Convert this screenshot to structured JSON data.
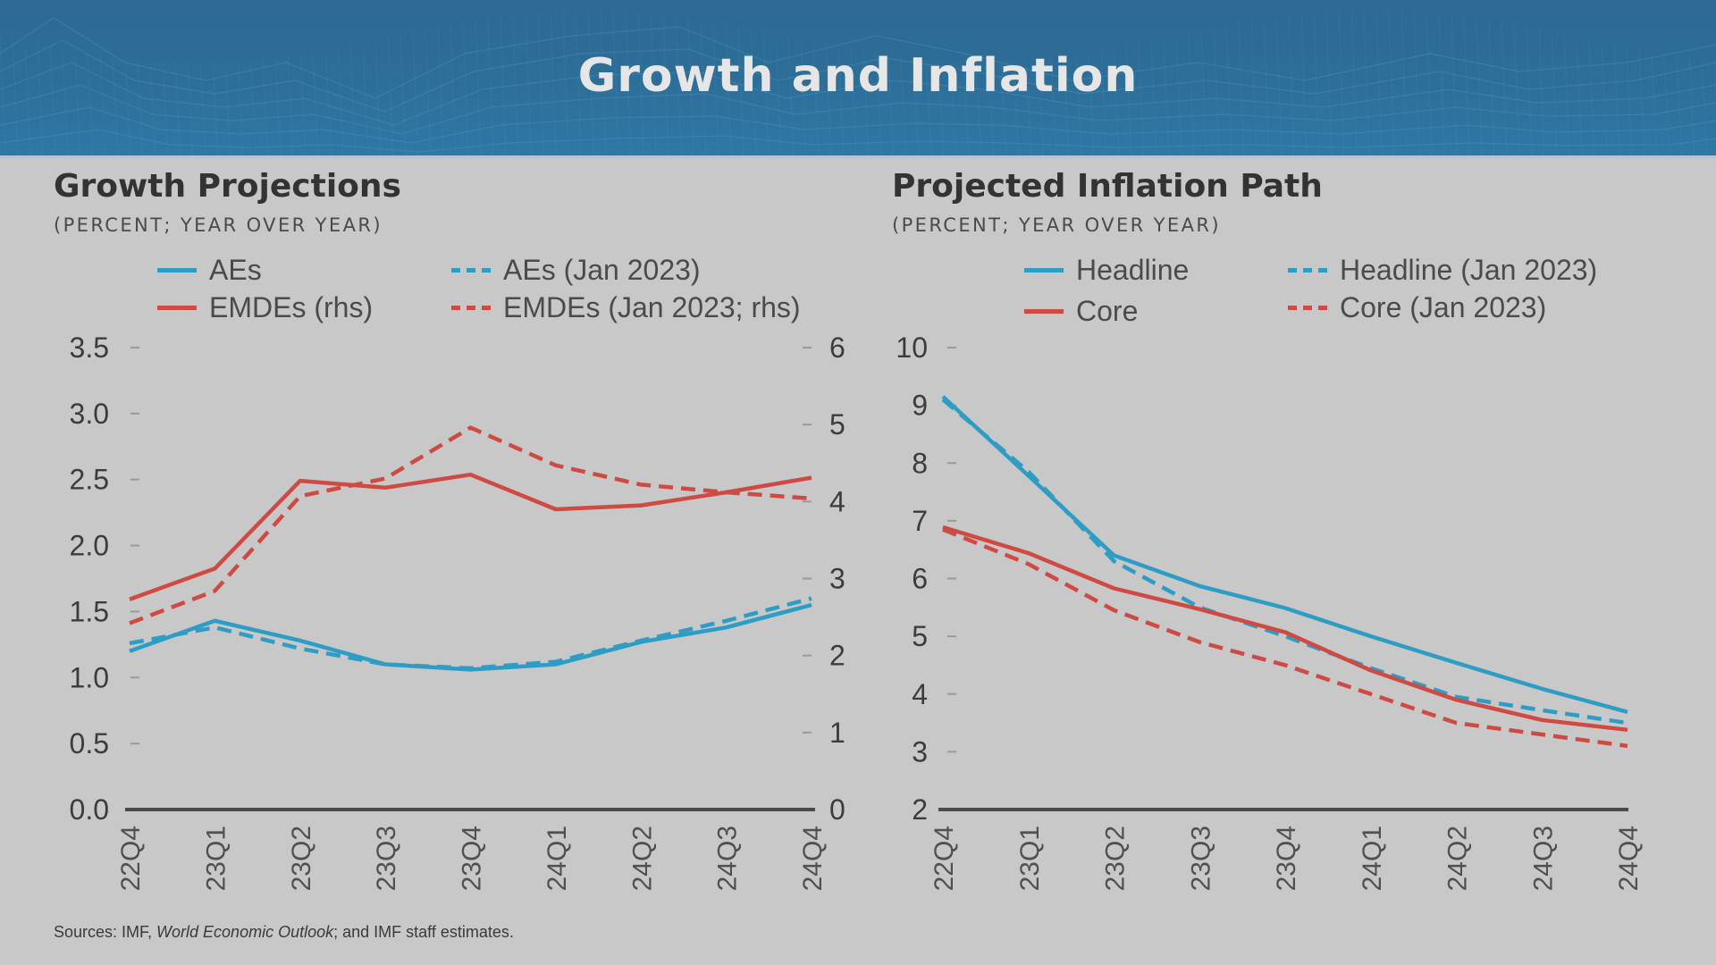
{
  "banner": {
    "title": "Growth and Inflation"
  },
  "colors": {
    "blue": "#2e9dc6",
    "red": "#cf4a43",
    "axis": "#4a4a4a",
    "text": "#3c3c3c",
    "tick": "#9a9a9a"
  },
  "left_panel": {
    "title": "Growth Projections",
    "subtitle": "(PERCENT; YEAR OVER YEAR)",
    "legend": [
      {
        "label": "AEs",
        "color": "blue",
        "style": "solid"
      },
      {
        "label": "AEs (Jan 2023)",
        "color": "blue",
        "style": "dashed"
      },
      {
        "label": "EMDEs (rhs)",
        "color": "red",
        "style": "solid"
      },
      {
        "label": "EMDEs (Jan 2023; rhs)",
        "color": "red",
        "style": "dashed"
      }
    ]
  },
  "right_panel": {
    "title": "Projected Inflation Path",
    "subtitle": "(PERCENT; YEAR OVER YEAR)",
    "legend": [
      {
        "label": "Headline",
        "color": "blue",
        "style": "solid"
      },
      {
        "label": "Headline (Jan 2023)",
        "color": "blue",
        "style": "dashed"
      },
      {
        "label": "Core",
        "color": "red",
        "style": "solid"
      },
      {
        "label": "Core (Jan 2023)",
        "color": "red",
        "style": "dashed"
      }
    ]
  },
  "source": {
    "prefix": "Sources: IMF, ",
    "italic": "World Economic Outlook",
    "suffix": "; and IMF staff estimates."
  },
  "chart_data": [
    {
      "type": "line",
      "title": "Growth Projections",
      "subtitle": "(PERCENT; YEAR OVER YEAR)",
      "categories": [
        "22Q4",
        "23Q1",
        "23Q2",
        "23Q3",
        "23Q4",
        "24Q1",
        "24Q2",
        "24Q3",
        "24Q4"
      ],
      "y_left": {
        "ylim": [
          0,
          3.5
        ],
        "ticks": [
          0.0,
          0.5,
          1.0,
          1.5,
          2.0,
          2.5,
          3.0,
          3.5
        ],
        "tick_labels": [
          "0.0",
          "0.5",
          "1.0",
          "1.5",
          "2.0",
          "2.5",
          "3.0",
          "3.5"
        ]
      },
      "y_right": {
        "ylim": [
          0,
          6
        ],
        "ticks": [
          0,
          1,
          2,
          3,
          4,
          5,
          6
        ],
        "tick_labels": [
          "0",
          "1",
          "2",
          "3",
          "4",
          "5",
          "6"
        ]
      },
      "grid": false,
      "legend_position": "top",
      "series": [
        {
          "name": "AEs",
          "axis": "left",
          "color": "blue",
          "style": "solid",
          "values": [
            1.2,
            1.43,
            1.28,
            1.1,
            1.06,
            1.1,
            1.27,
            1.38,
            1.55
          ]
        },
        {
          "name": "AEs (Jan 2023)",
          "axis": "left",
          "color": "blue",
          "style": "dashed",
          "values": [
            1.26,
            1.38,
            1.22,
            1.1,
            1.07,
            1.12,
            1.28,
            1.43,
            1.6
          ]
        },
        {
          "name": "EMDEs (rhs)",
          "axis": "right",
          "color": "red",
          "style": "solid",
          "values": [
            2.73,
            3.13,
            4.27,
            4.18,
            4.35,
            3.9,
            3.95,
            4.12,
            4.31
          ]
        },
        {
          "name": "EMDEs (Jan 2023; rhs)",
          "axis": "right",
          "color": "red",
          "style": "dashed",
          "values": [
            2.42,
            2.84,
            4.07,
            4.3,
            4.96,
            4.47,
            4.22,
            4.12,
            4.04
          ]
        }
      ]
    },
    {
      "type": "line",
      "title": "Projected Inflation Path",
      "subtitle": "(PERCENT; YEAR OVER YEAR)",
      "categories": [
        "22Q4",
        "23Q1",
        "23Q2",
        "23Q3",
        "23Q4",
        "24Q1",
        "24Q2",
        "24Q3",
        "24Q4"
      ],
      "y_left": {
        "ylim": [
          2,
          10
        ],
        "ticks": [
          2,
          3,
          4,
          5,
          6,
          7,
          8,
          9,
          10
        ],
        "tick_labels": [
          "2",
          "3",
          "4",
          "5",
          "6",
          "7",
          "8",
          "9",
          "10"
        ]
      },
      "grid": false,
      "legend_position": "top",
      "series": [
        {
          "name": "Headline",
          "axis": "left",
          "color": "blue",
          "style": "solid",
          "values": [
            9.15,
            7.78,
            6.4,
            5.87,
            5.49,
            5.0,
            4.54,
            4.09,
            3.69
          ]
        },
        {
          "name": "Headline (Jan 2023)",
          "axis": "left",
          "color": "blue",
          "style": "dashed",
          "values": [
            9.1,
            7.85,
            6.3,
            5.5,
            5.0,
            4.45,
            3.95,
            3.72,
            3.5
          ]
        },
        {
          "name": "Core",
          "axis": "left",
          "color": "red",
          "style": "solid",
          "values": [
            6.89,
            6.44,
            5.83,
            5.47,
            5.07,
            4.41,
            3.9,
            3.55,
            3.38
          ]
        },
        {
          "name": "Core (Jan 2023)",
          "axis": "left",
          "color": "red",
          "style": "dashed",
          "values": [
            6.85,
            6.25,
            5.45,
            4.9,
            4.5,
            4.0,
            3.5,
            3.3,
            3.1
          ]
        }
      ]
    }
  ]
}
